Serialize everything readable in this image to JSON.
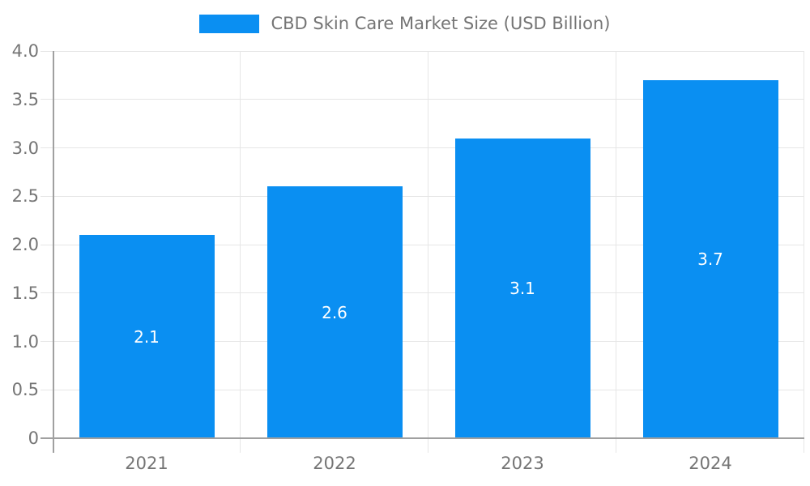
{
  "chart_data": {
    "type": "bar",
    "title": "CBD Skin Care Market Size (USD Billion)",
    "categories": [
      "2021",
      "2022",
      "2023",
      "2024"
    ],
    "values": [
      2.1,
      2.6,
      3.1,
      3.7
    ],
    "bar_value_labels": [
      "2.1",
      "2.6",
      "3.1",
      "3.7"
    ],
    "xlabel": "",
    "ylabel": "",
    "ylim": [
      0,
      4.0
    ],
    "ytick_step": 0.5,
    "ytick_labels": [
      "0",
      "0.5",
      "1.0",
      "1.5",
      "2.0",
      "2.5",
      "3.0",
      "3.5",
      "4.0"
    ],
    "grid": true,
    "legend_position": "top-center",
    "colors": {
      "bar": "#0a8ff2",
      "label_text": "#ffffff",
      "axis": "#a0a0a0",
      "grid": "#e6e6e6",
      "tick_text": "#757575"
    }
  }
}
